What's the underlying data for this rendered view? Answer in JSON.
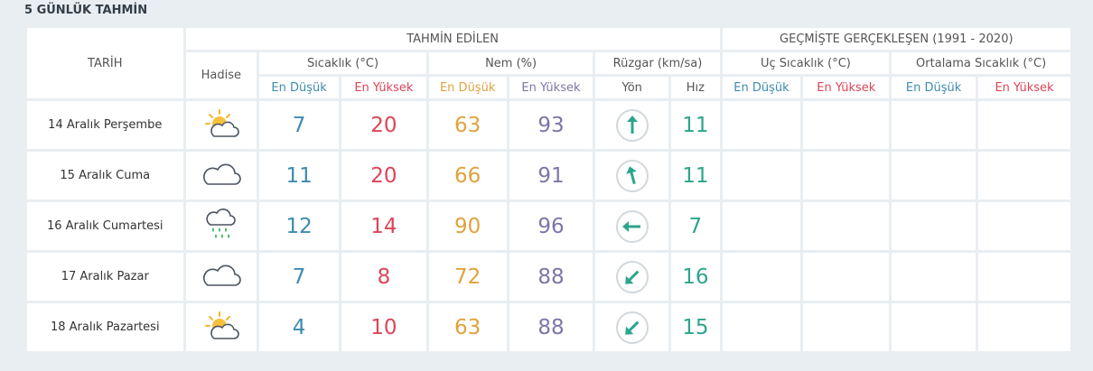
{
  "title": "5 GÜNLÜK TAHMİN",
  "header": {
    "tarih": "TARİH",
    "predicted": "TAHMİN EDİLEN",
    "past": "GEÇMİŞTE GERÇEKLEŞEN (1991 - 2020)",
    "hadise": "Hadise",
    "sicaklik": "Sıcaklık (°C)",
    "nem": "Nem (%)",
    "ruzgar": "Rüzgar (km/sa)",
    "uc_sicaklik": "Uç Sıcaklık (°C)",
    "ortalama_sicaklik": "Ortalama Sıcaklık (°C)",
    "en_dusuk": "En Düşük",
    "en_yuksek": "En Yüksek",
    "yon": "Yön",
    "hiz": "Hız"
  },
  "colors": {
    "low": "#3d8bb0",
    "high": "#dd4558",
    "humidity_low": "#e0a23f",
    "humidity_high": "#7d76a8",
    "wind": "#2da58c"
  },
  "rows": [
    {
      "date": "14 Aralık Perşembe",
      "icon": "partly-cloudy-icon",
      "temp_low": "7",
      "temp_high": "20",
      "hum_low": "63",
      "hum_high": "93",
      "wind_dir_deg": 0,
      "wind_speed": "11"
    },
    {
      "date": "15 Aralık Cuma",
      "icon": "cloudy-icon",
      "temp_low": "11",
      "temp_high": "20",
      "hum_low": "66",
      "hum_high": "91",
      "wind_dir_deg": -15,
      "wind_speed": "11"
    },
    {
      "date": "16 Aralık Cumartesi",
      "icon": "rain-icon",
      "temp_low": "12",
      "temp_high": "14",
      "hum_low": "90",
      "hum_high": "96",
      "wind_dir_deg": -90,
      "wind_speed": "7"
    },
    {
      "date": "17 Aralık Pazar",
      "icon": "cloudy-icon",
      "temp_low": "7",
      "temp_high": "8",
      "hum_low": "72",
      "hum_high": "88",
      "wind_dir_deg": -135,
      "wind_speed": "16"
    },
    {
      "date": "18 Aralık Pazartesi",
      "icon": "partly-cloudy-icon",
      "temp_low": "4",
      "temp_high": "10",
      "hum_low": "63",
      "hum_high": "88",
      "wind_dir_deg": -135,
      "wind_speed": "15"
    }
  ]
}
